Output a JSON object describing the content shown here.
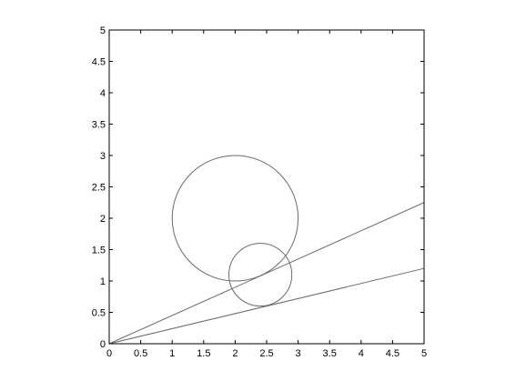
{
  "chart_data": {
    "type": "line",
    "title": "",
    "xlabel": "",
    "ylabel": "",
    "xlim": [
      0,
      5
    ],
    "ylim": [
      0,
      5
    ],
    "grid": false,
    "x_ticks": [
      {
        "value": 0,
        "label": "0"
      },
      {
        "value": 0.5,
        "label": "0.5"
      },
      {
        "value": 1,
        "label": "1"
      },
      {
        "value": 1.5,
        "label": "1.5"
      },
      {
        "value": 2,
        "label": "2"
      },
      {
        "value": 2.5,
        "label": "2.5"
      },
      {
        "value": 3,
        "label": "3"
      },
      {
        "value": 3.5,
        "label": "3.5"
      },
      {
        "value": 4,
        "label": "4"
      },
      {
        "value": 4.5,
        "label": "4.5"
      },
      {
        "value": 5,
        "label": "5"
      }
    ],
    "y_ticks": [
      {
        "value": 0,
        "label": "0"
      },
      {
        "value": 0.5,
        "label": "0.5"
      },
      {
        "value": 1,
        "label": "1"
      },
      {
        "value": 1.5,
        "label": "1.5"
      },
      {
        "value": 2,
        "label": "2"
      },
      {
        "value": 2.5,
        "label": "2.5"
      },
      {
        "value": 3,
        "label": "3"
      },
      {
        "value": 3.5,
        "label": "3.5"
      },
      {
        "value": 4,
        "label": "4"
      },
      {
        "value": 4.5,
        "label": "4.5"
      },
      {
        "value": 5,
        "label": "5"
      }
    ],
    "lines": [
      {
        "x": [
          0,
          5
        ],
        "y": [
          0,
          2.25
        ]
      },
      {
        "x": [
          0,
          5
        ],
        "y": [
          0,
          1.2
        ]
      }
    ],
    "circles": [
      {
        "cx": 2,
        "cy": 2,
        "r": 1
      },
      {
        "cx": 2.4,
        "cy": 1.1,
        "r": 0.5
      }
    ],
    "colors": {
      "line": "#6b6b6b",
      "axes": "#000000",
      "background": "#ffffff"
    }
  }
}
